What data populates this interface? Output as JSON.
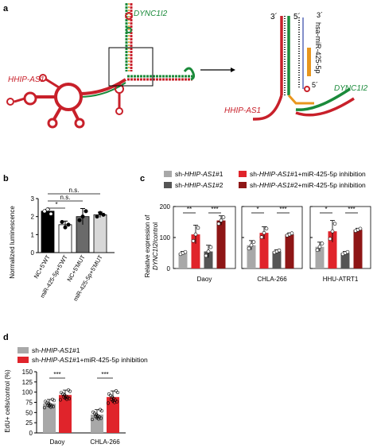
{
  "panels": {
    "a": {
      "label": "a",
      "gene_top": "DYNC1I2",
      "lnc_left": "HHIP-AS1",
      "zoom_prime_3_left": "3´",
      "zoom_prime_5": "5´",
      "zoom_prime_3_right": "3´",
      "zoom_prime_5_bottom": "5´",
      "mirna": "hsa-miR-425-5p",
      "zoom_gene": "DYNC1I2",
      "zoom_lnc": "HHIP-AS1",
      "colors": {
        "lnc": "#c8202a",
        "mrna": "#1a8a3a",
        "mirna": "#e8961e",
        "loop": "#c8202a"
      }
    },
    "b": {
      "label": "b",
      "ylabel": "Normalized luminescence",
      "significance": [
        "*",
        "n.s.",
        "n.s."
      ]
    },
    "c": {
      "label": "c",
      "ylabel_prefix": "Relative expression of",
      "ylabel_gene": "DYNC1I2",
      "ylabel_suffix": "/control",
      "legend": [
        {
          "prefix": "sh-",
          "gene": "HHIP-AS1",
          "suffix": "#1",
          "color": "#a8a8a8"
        },
        {
          "prefix": "sh-",
          "gene": "HHIP-AS1",
          "suffix": "#2",
          "color": "#555555"
        },
        {
          "prefix": "sh-",
          "gene": "HHIP-AS1",
          "suffix": "#1+miR-425-5p inhibition",
          "color": "#e0242b"
        },
        {
          "prefix": "sh-",
          "gene": "HHIP-AS1",
          "suffix": "#2+miR-425-5p inhibition",
          "color": "#8e1616"
        }
      ],
      "significance": [
        "**",
        "***",
        "*",
        "***",
        "*",
        "***"
      ]
    },
    "d": {
      "label": "d",
      "ylabel": "EdU+ cells/control (%)",
      "legend": [
        {
          "prefix": "sh-",
          "gene": "HHIP-AS1",
          "suffix": "#1",
          "color": "#a8a8a8"
        },
        {
          "prefix": "sh-",
          "gene": "HHIP-AS1",
          "suffix": "#1+miR-425-5p inhibition",
          "color": "#e0242b"
        }
      ],
      "significance": [
        "***",
        "***"
      ]
    }
  },
  "chart_data": [
    {
      "panel": "b",
      "type": "bar",
      "categories": [
        "NC+5'WT",
        "miR-425-5p+5'WT",
        "NC+5'MUT",
        "miR-425-5p+5'MUT"
      ],
      "values": [
        2.3,
        1.55,
        2.0,
        2.1
      ],
      "errors": [
        0.1,
        0.2,
        0.45,
        0.15
      ],
      "colors": [
        "#000000",
        "#ffffff",
        "#6a6a6a",
        "#d8d8d8"
      ],
      "ylabel": "Normalized luminescence",
      "ylim": [
        0,
        3
      ],
      "yticks": [
        0,
        1,
        2,
        3
      ],
      "points": [
        [
          2.3,
          2.4,
          2.15
        ],
        [
          1.7,
          1.4,
          1.55
        ],
        [
          1.8,
          2.0,
          2.3
        ],
        [
          2.0,
          2.2,
          2.1
        ]
      ]
    },
    {
      "panel": "c",
      "type": "bar",
      "groups": [
        "Daoy",
        "CHLA-266",
        "HHU-ATRT1"
      ],
      "series": [
        {
          "name": "sh-HHIP-AS1#1",
          "values": [
            50,
            75,
            70
          ]
        },
        {
          "name": "sh-HHIP-AS1+miR-425-5p inhibition",
          "values": [
            110,
            115,
            120
          ]
        },
        {
          "name": "sh-HHIP-AS1#2",
          "values": [
            55,
            55,
            50
          ]
        },
        {
          "name": "sh-HHIP-AS1#2+miR-425-5p inhibition",
          "values": [
            155,
            110,
            125
          ]
        }
      ],
      "errors": [
        [
          5,
          15,
          15
        ],
        [
          30,
          20,
          35
        ],
        [
          20,
          5,
          5
        ],
        [
          15,
          5,
          5
        ]
      ],
      "ylim": [
        0,
        200
      ],
      "yticks": [
        0,
        100,
        200
      ]
    },
    {
      "panel": "d",
      "type": "bar",
      "categories": [
        "Daoy",
        "CHLA-266"
      ],
      "series": [
        {
          "name": "sh-HHIP-AS1#1",
          "values": [
            72,
            45
          ]
        },
        {
          "name": "sh-HHIP-AS1#1+miR-425-5p inhibition",
          "values": [
            93,
            88
          ]
        }
      ],
      "errors": [
        [
          10,
          12
        ],
        [
          12,
          15
        ]
      ],
      "ylim": [
        0,
        150
      ],
      "yticks": [
        0,
        25,
        50,
        75,
        100,
        125,
        150
      ]
    }
  ]
}
